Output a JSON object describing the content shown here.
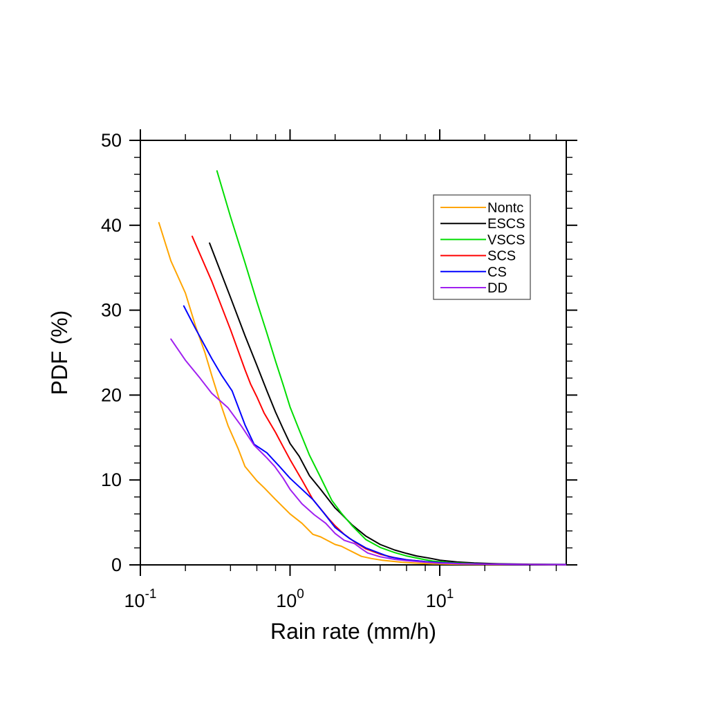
{
  "figure": {
    "background": "#ffffff",
    "text_color": "#000000"
  },
  "chart_data": {
    "type": "line",
    "title": "",
    "xlabel": "Rain rate (mm/h)",
    "ylabel": "PDF (%)",
    "x_scale": "log",
    "y_scale": "linear",
    "xlim": [
      0.1,
      70
    ],
    "ylim": [
      0,
      50
    ],
    "grid": false,
    "x_major_ticks": [
      {
        "value": 0.1,
        "label_base": "10",
        "label_exp": "-1"
      },
      {
        "value": 1,
        "label_base": "10",
        "label_exp": "0"
      },
      {
        "value": 10,
        "label_base": "10",
        "label_exp": "1"
      }
    ],
    "x_minor_ticks": [
      0.2,
      0.4,
      0.6,
      0.8,
      2,
      4,
      6,
      8,
      20,
      40,
      60
    ],
    "y_major_ticks": [
      0,
      10,
      20,
      30,
      40,
      50
    ],
    "y_major_tick_labels": [
      "0",
      "10",
      "20",
      "30",
      "40",
      "50"
    ],
    "y_minor_step": 2,
    "legend": {
      "position": "upper-right",
      "entries": [
        "Nontc",
        "ESCS",
        "VSCS",
        "SCS",
        "CS",
        "DD"
      ]
    },
    "series": [
      {
        "name": "Nontc",
        "color": "#FFA500",
        "points": [
          [
            0.133,
            40.3
          ],
          [
            0.16,
            35.8
          ],
          [
            0.2,
            32
          ],
          [
            0.234,
            28.1
          ],
          [
            0.27,
            25
          ],
          [
            0.3,
            22.3
          ],
          [
            0.345,
            18.9
          ],
          [
            0.385,
            16.4
          ],
          [
            0.45,
            13.7
          ],
          [
            0.5,
            11.6
          ],
          [
            0.6,
            9.9
          ],
          [
            0.67,
            9.1
          ],
          [
            0.8,
            7.7
          ],
          [
            1,
            6
          ],
          [
            1.2,
            4.9
          ],
          [
            1.42,
            3.6
          ],
          [
            1.6,
            3.3
          ],
          [
            2,
            2.4
          ],
          [
            2.2,
            2.2
          ],
          [
            2.5,
            1.7
          ],
          [
            3,
            1
          ],
          [
            3.5,
            0.75
          ],
          [
            4.1,
            0.55
          ],
          [
            5,
            0.4
          ],
          [
            5.6,
            0.3
          ],
          [
            7,
            0.2
          ],
          [
            9,
            0.12
          ],
          [
            12,
            0.08
          ],
          [
            20,
            0.05
          ],
          [
            40,
            0.04
          ],
          [
            65,
            0.03
          ]
        ]
      },
      {
        "name": "ESCS",
        "color": "#000000",
        "points": [
          [
            0.29,
            37.9
          ],
          [
            0.4,
            31.5
          ],
          [
            0.5,
            27
          ],
          [
            0.6,
            23.5
          ],
          [
            0.7,
            20.5
          ],
          [
            0.8,
            18
          ],
          [
            0.9,
            16
          ],
          [
            1,
            14.3
          ],
          [
            1.15,
            12.8
          ],
          [
            1.35,
            10.5
          ],
          [
            1.6,
            8.9
          ],
          [
            2,
            6.7
          ],
          [
            2.2,
            6
          ],
          [
            2.6,
            4.7
          ],
          [
            3.2,
            3.4
          ],
          [
            4,
            2.4
          ],
          [
            5,
            1.75
          ],
          [
            6,
            1.35
          ],
          [
            7,
            1.05
          ],
          [
            8.5,
            0.8
          ],
          [
            10,
            0.55
          ],
          [
            13,
            0.35
          ],
          [
            17,
            0.22
          ],
          [
            25,
            0.12
          ],
          [
            40,
            0.07
          ],
          [
            70,
            0.05
          ]
        ]
      },
      {
        "name": "VSCS",
        "color": "#00DD00",
        "points": [
          [
            0.325,
            46.4
          ],
          [
            0.4,
            41
          ],
          [
            0.5,
            35.6
          ],
          [
            0.6,
            31
          ],
          [
            0.7,
            27.3
          ],
          [
            0.8,
            24
          ],
          [
            0.9,
            21.2
          ],
          [
            1,
            18.6
          ],
          [
            1.15,
            15.9
          ],
          [
            1.35,
            12.9
          ],
          [
            1.6,
            10.3
          ],
          [
            1.9,
            7.6
          ],
          [
            2.2,
            6.1
          ],
          [
            2.6,
            4.6
          ],
          [
            3.2,
            3
          ],
          [
            4,
            2.05
          ],
          [
            5,
            1.45
          ],
          [
            6,
            1.05
          ],
          [
            7.5,
            0.7
          ],
          [
            9,
            0.45
          ],
          [
            12,
            0.25
          ],
          [
            17,
            0.14
          ],
          [
            25,
            0.08
          ],
          [
            40,
            0.05
          ],
          [
            63,
            0.03
          ]
        ]
      },
      {
        "name": "SCS",
        "color": "#FF0000",
        "points": [
          [
            0.222,
            38.7
          ],
          [
            0.3,
            33.4
          ],
          [
            0.4,
            27.7
          ],
          [
            0.5,
            23
          ],
          [
            0.545,
            21.3
          ],
          [
            0.6,
            19.8
          ],
          [
            0.67,
            17.9
          ],
          [
            0.8,
            15.6
          ],
          [
            0.9,
            13.9
          ],
          [
            1,
            12.4
          ],
          [
            1.2,
            10
          ],
          [
            1.42,
            7.7
          ],
          [
            1.6,
            6.6
          ],
          [
            1.8,
            5.5
          ],
          [
            2,
            4.6
          ],
          [
            2.3,
            3.6
          ],
          [
            2.7,
            2.7
          ],
          [
            3.2,
            1.9
          ],
          [
            4,
            1.25
          ],
          [
            5,
            0.85
          ],
          [
            6,
            0.6
          ],
          [
            8,
            0.38
          ],
          [
            10,
            0.27
          ],
          [
            14,
            0.15
          ],
          [
            20,
            0.1
          ],
          [
            40,
            0.05
          ],
          [
            70,
            0.03
          ]
        ]
      },
      {
        "name": "CS",
        "color": "#0000FF",
        "points": [
          [
            0.195,
            30.5
          ],
          [
            0.234,
            27.8
          ],
          [
            0.3,
            24.3
          ],
          [
            0.35,
            22.3
          ],
          [
            0.41,
            20.5
          ],
          [
            0.5,
            16.5
          ],
          [
            0.575,
            14.2
          ],
          [
            0.7,
            13.2
          ],
          [
            0.85,
            11.6
          ],
          [
            1,
            10.2
          ],
          [
            1.2,
            8.9
          ],
          [
            1.42,
            7.7
          ],
          [
            1.7,
            6
          ],
          [
            2,
            4.4
          ],
          [
            2.5,
            3.1
          ],
          [
            3.2,
            2
          ],
          [
            4,
            1.35
          ],
          [
            4.6,
            0.95
          ],
          [
            6,
            0.6
          ],
          [
            8,
            0.38
          ],
          [
            10,
            0.27
          ],
          [
            14,
            0.15
          ],
          [
            20,
            0.1
          ],
          [
            40,
            0.05
          ],
          [
            70,
            0.03
          ]
        ]
      },
      {
        "name": "DD",
        "color": "#A020F0",
        "points": [
          [
            0.16,
            26.6
          ],
          [
            0.2,
            24.1
          ],
          [
            0.25,
            22
          ],
          [
            0.3,
            20.2
          ],
          [
            0.385,
            18.5
          ],
          [
            0.475,
            16.3
          ],
          [
            0.575,
            14.1
          ],
          [
            0.7,
            12.6
          ],
          [
            0.79,
            11.6
          ],
          [
            0.9,
            10.2
          ],
          [
            1,
            8.9
          ],
          [
            1.2,
            7.2
          ],
          [
            1.45,
            5.9
          ],
          [
            1.73,
            4.9
          ],
          [
            2,
            3.7
          ],
          [
            2.3,
            2.9
          ],
          [
            2.7,
            2.5
          ],
          [
            3,
            1.9
          ],
          [
            3.3,
            1.4
          ],
          [
            4,
            0.95
          ],
          [
            5,
            0.65
          ],
          [
            6,
            0.5
          ],
          [
            8,
            0.32
          ],
          [
            10,
            0.2
          ],
          [
            14,
            0.12
          ],
          [
            20,
            0.08
          ],
          [
            40,
            0.04
          ],
          [
            70,
            0.02
          ]
        ]
      }
    ]
  }
}
